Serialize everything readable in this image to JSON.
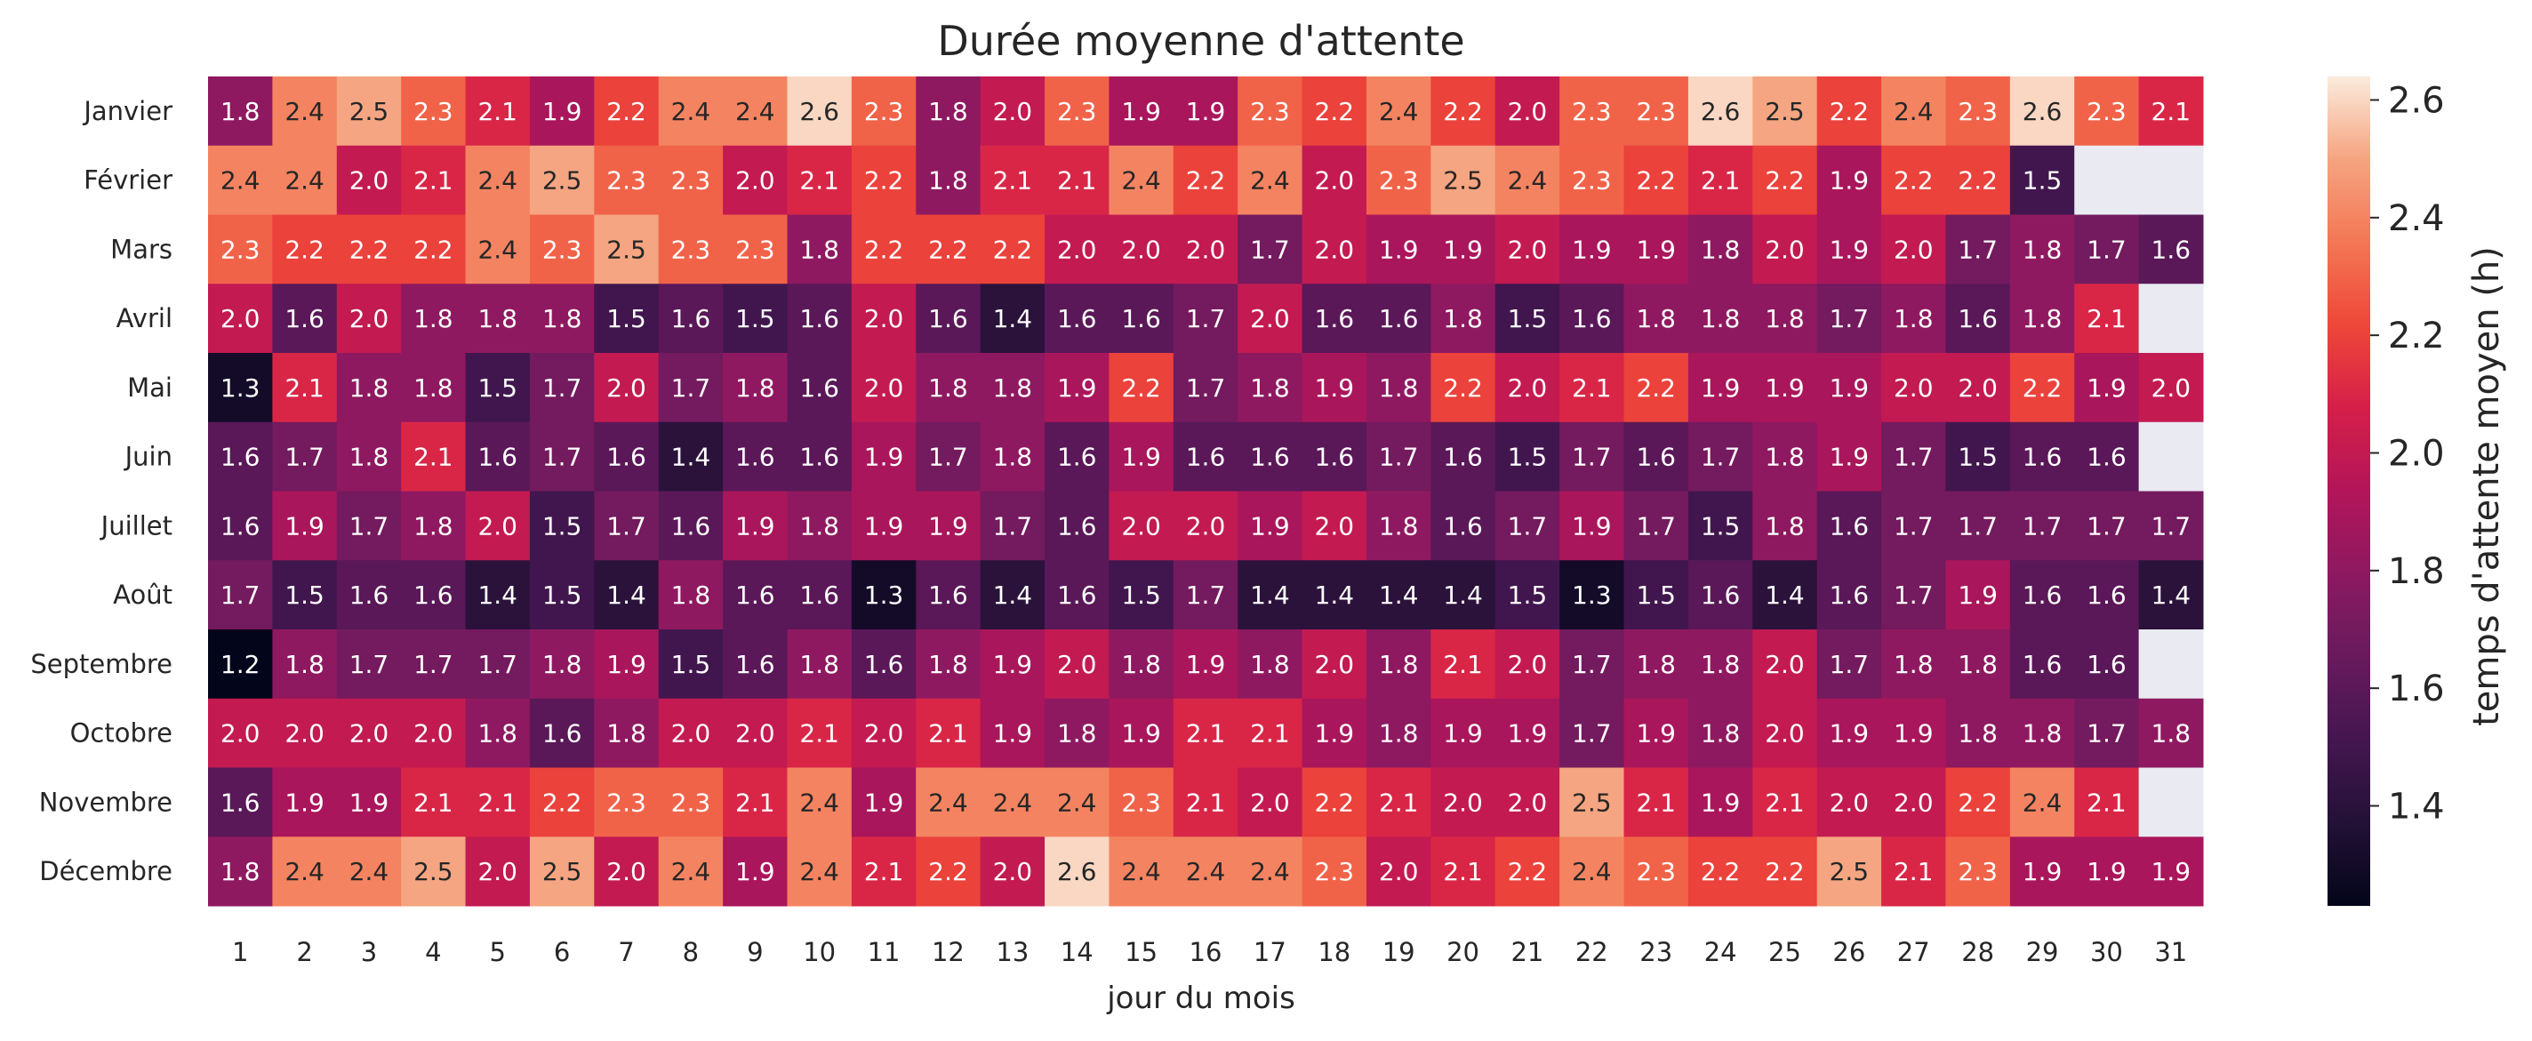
{
  "chart_data": {
    "type": "heatmap",
    "title": "Durée moyenne d'attente",
    "xlabel": "jour du mois",
    "colorbar_label": "temps d'attente moyen (h)",
    "colorbar_ticks": [
      "1.4",
      "1.6",
      "1.8",
      "2.0",
      "2.2",
      "2.4",
      "2.6"
    ],
    "color_range": [
      1.23,
      2.64
    ],
    "colormap": "rocket",
    "missing_color": "#EAEAF2",
    "columns": [
      "1",
      "2",
      "3",
      "4",
      "5",
      "6",
      "7",
      "8",
      "9",
      "10",
      "11",
      "12",
      "13",
      "14",
      "15",
      "16",
      "17",
      "18",
      "19",
      "20",
      "21",
      "22",
      "23",
      "24",
      "25",
      "26",
      "27",
      "28",
      "29",
      "30",
      "31"
    ],
    "rows": [
      "Janvier",
      "Février",
      "Mars",
      "Avril",
      "Mai",
      "Juin",
      "Juillet",
      "Août",
      "Septembre",
      "Octobre",
      "Novembre",
      "Décembre"
    ],
    "values": [
      [
        1.8,
        2.4,
        2.5,
        2.3,
        2.1,
        1.9,
        2.2,
        2.4,
        2.4,
        2.6,
        2.3,
        1.8,
        2.0,
        2.3,
        1.9,
        1.9,
        2.3,
        2.2,
        2.4,
        2.2,
        2.0,
        2.3,
        2.3,
        2.6,
        2.5,
        2.2,
        2.4,
        2.3,
        2.6,
        2.3,
        2.1
      ],
      [
        2.4,
        2.4,
        2.0,
        2.1,
        2.4,
        2.5,
        2.3,
        2.3,
        2.0,
        2.1,
        2.2,
        1.8,
        2.1,
        2.1,
        2.4,
        2.2,
        2.4,
        2.0,
        2.3,
        2.5,
        2.4,
        2.3,
        2.2,
        2.1,
        2.2,
        1.9,
        2.2,
        2.2,
        1.5,
        null,
        null
      ],
      [
        2.3,
        2.2,
        2.2,
        2.2,
        2.4,
        2.3,
        2.5,
        2.3,
        2.3,
        1.8,
        2.2,
        2.2,
        2.2,
        2.0,
        2.0,
        2.0,
        1.7,
        2.0,
        1.9,
        1.9,
        2.0,
        1.9,
        1.9,
        1.8,
        2.0,
        1.9,
        2.0,
        1.7,
        1.8,
        1.7,
        1.6
      ],
      [
        2.0,
        1.6,
        2.0,
        1.8,
        1.8,
        1.8,
        1.5,
        1.6,
        1.5,
        1.6,
        2.0,
        1.6,
        1.4,
        1.6,
        1.6,
        1.7,
        2.0,
        1.6,
        1.6,
        1.8,
        1.5,
        1.6,
        1.8,
        1.8,
        1.8,
        1.7,
        1.8,
        1.6,
        1.8,
        2.1,
        null
      ],
      [
        1.3,
        2.1,
        1.8,
        1.8,
        1.5,
        1.7,
        2.0,
        1.7,
        1.8,
        1.6,
        2.0,
        1.8,
        1.8,
        1.9,
        2.2,
        1.7,
        1.8,
        1.9,
        1.8,
        2.2,
        2.0,
        2.1,
        2.2,
        1.9,
        1.9,
        1.9,
        2.0,
        2.0,
        2.2,
        1.9,
        2.0
      ],
      [
        1.6,
        1.7,
        1.8,
        2.1,
        1.6,
        1.7,
        1.6,
        1.4,
        1.6,
        1.6,
        1.9,
        1.7,
        1.8,
        1.6,
        1.9,
        1.6,
        1.6,
        1.6,
        1.7,
        1.6,
        1.5,
        1.7,
        1.6,
        1.7,
        1.8,
        1.9,
        1.7,
        1.5,
        1.6,
        1.6,
        null
      ],
      [
        1.6,
        1.9,
        1.7,
        1.8,
        2.0,
        1.5,
        1.7,
        1.6,
        1.9,
        1.8,
        1.9,
        1.9,
        1.7,
        1.6,
        2.0,
        2.0,
        1.9,
        2.0,
        1.8,
        1.6,
        1.7,
        1.9,
        1.7,
        1.5,
        1.8,
        1.6,
        1.7,
        1.7,
        1.7,
        1.7,
        1.7
      ],
      [
        1.7,
        1.5,
        1.6,
        1.6,
        1.4,
        1.5,
        1.4,
        1.8,
        1.6,
        1.6,
        1.3,
        1.6,
        1.4,
        1.6,
        1.5,
        1.7,
        1.4,
        1.4,
        1.4,
        1.4,
        1.5,
        1.3,
        1.5,
        1.6,
        1.4,
        1.6,
        1.7,
        1.9,
        1.6,
        1.6,
        1.4
      ],
      [
        1.2,
        1.8,
        1.7,
        1.7,
        1.7,
        1.8,
        1.9,
        1.5,
        1.6,
        1.8,
        1.6,
        1.8,
        1.9,
        2.0,
        1.8,
        1.9,
        1.8,
        2.0,
        1.8,
        2.1,
        2.0,
        1.7,
        1.8,
        1.8,
        2.0,
        1.7,
        1.8,
        1.8,
        1.6,
        1.6,
        null
      ],
      [
        2.0,
        2.0,
        2.0,
        2.0,
        1.8,
        1.6,
        1.8,
        2.0,
        2.0,
        2.1,
        2.0,
        2.1,
        1.9,
        1.8,
        1.9,
        2.1,
        2.1,
        1.9,
        1.8,
        1.9,
        1.9,
        1.7,
        1.9,
        1.8,
        2.0,
        1.9,
        1.9,
        1.8,
        1.8,
        1.7,
        1.8
      ],
      [
        1.6,
        1.9,
        1.9,
        2.1,
        2.1,
        2.2,
        2.3,
        2.3,
        2.1,
        2.4,
        1.9,
        2.4,
        2.4,
        2.4,
        2.3,
        2.1,
        2.0,
        2.2,
        2.1,
        2.0,
        2.0,
        2.5,
        2.1,
        1.9,
        2.1,
        2.0,
        2.0,
        2.2,
        2.4,
        2.1,
        null
      ],
      [
        1.8,
        2.4,
        2.4,
        2.5,
        2.0,
        2.5,
        2.0,
        2.4,
        1.9,
        2.4,
        2.1,
        2.2,
        2.0,
        2.6,
        2.4,
        2.4,
        2.4,
        2.3,
        2.0,
        2.1,
        2.2,
        2.4,
        2.3,
        2.2,
        2.2,
        2.5,
        2.1,
        2.3,
        1.9,
        1.9,
        1.9
      ]
    ]
  }
}
